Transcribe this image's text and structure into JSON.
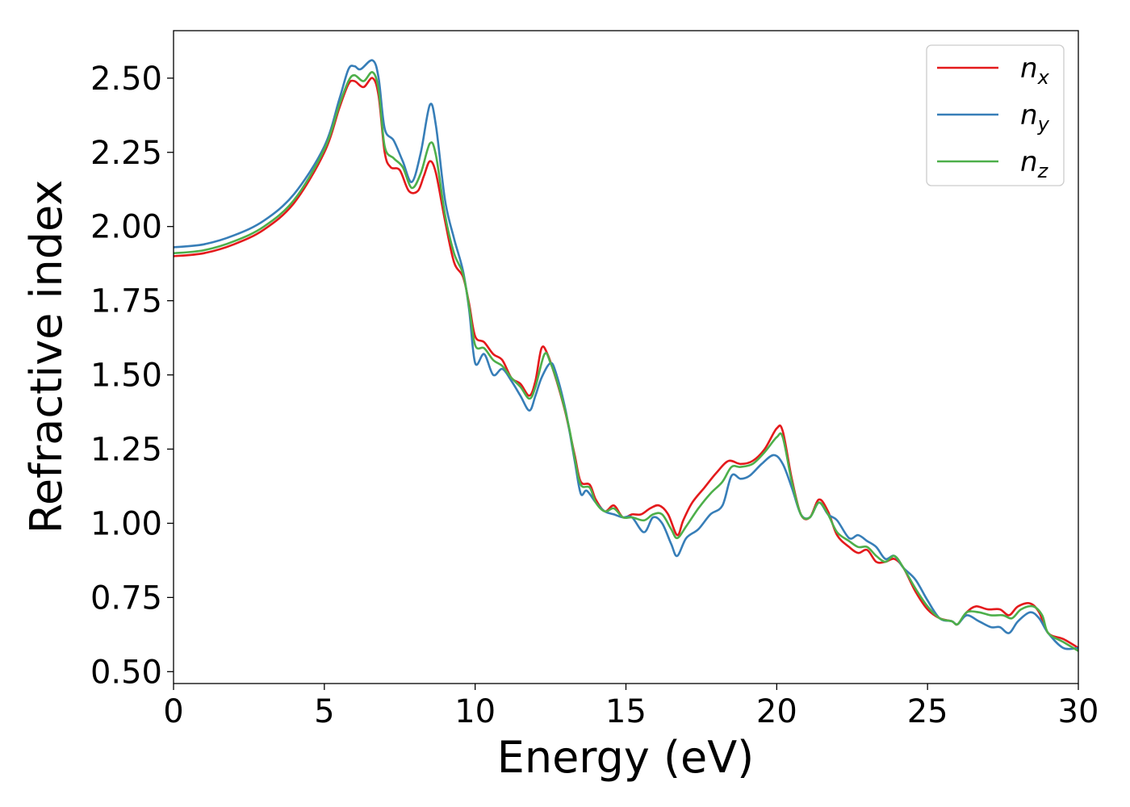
{
  "chart_data": {
    "type": "line",
    "title": "",
    "xlabel": "Energy (eV)",
    "ylabel": "Refractive index",
    "xlim": [
      0,
      30
    ],
    "ylim": [
      0.46,
      2.66
    ],
    "xticks": [
      0,
      5,
      10,
      15,
      20,
      25,
      30
    ],
    "xtick_labels": [
      "0",
      "5",
      "10",
      "15",
      "20",
      "25",
      "30"
    ],
    "yticks": [
      0.5,
      0.75,
      1.0,
      1.25,
      1.5,
      1.75,
      2.0,
      2.25,
      2.5
    ],
    "ytick_labels": [
      "0.50",
      "0.75",
      "1.00",
      "1.25",
      "1.50",
      "1.75",
      "2.00",
      "2.25",
      "2.50"
    ],
    "grid": false,
    "legend_position": "top-right",
    "series": [
      {
        "name": "n_x",
        "label_base": "n",
        "label_sub": "x",
        "color": "#e41a1c",
        "points": [
          [
            0,
            1.9
          ],
          [
            1,
            1.91
          ],
          [
            2,
            1.94
          ],
          [
            3,
            1.99
          ],
          [
            4,
            2.08
          ],
          [
            5,
            2.25
          ],
          [
            5.5,
            2.4
          ],
          [
            5.8,
            2.48
          ],
          [
            6.0,
            2.49
          ],
          [
            6.3,
            2.47
          ],
          [
            6.6,
            2.5
          ],
          [
            6.8,
            2.44
          ],
          [
            7.0,
            2.25
          ],
          [
            7.2,
            2.2
          ],
          [
            7.5,
            2.19
          ],
          [
            7.8,
            2.12
          ],
          [
            8.1,
            2.12
          ],
          [
            8.3,
            2.17
          ],
          [
            8.5,
            2.22
          ],
          [
            8.7,
            2.18
          ],
          [
            9.0,
            2.02
          ],
          [
            9.3,
            1.88
          ],
          [
            9.6,
            1.83
          ],
          [
            9.8,
            1.74
          ],
          [
            10.0,
            1.63
          ],
          [
            10.3,
            1.61
          ],
          [
            10.6,
            1.57
          ],
          [
            10.9,
            1.55
          ],
          [
            11.2,
            1.49
          ],
          [
            11.5,
            1.47
          ],
          [
            11.8,
            1.43
          ],
          [
            12.0,
            1.48
          ],
          [
            12.2,
            1.59
          ],
          [
            12.4,
            1.57
          ],
          [
            12.7,
            1.48
          ],
          [
            13.0,
            1.37
          ],
          [
            13.3,
            1.23
          ],
          [
            13.5,
            1.14
          ],
          [
            13.8,
            1.13
          ],
          [
            14.0,
            1.08
          ],
          [
            14.3,
            1.04
          ],
          [
            14.6,
            1.06
          ],
          [
            14.9,
            1.02
          ],
          [
            15.2,
            1.03
          ],
          [
            15.5,
            1.03
          ],
          [
            15.8,
            1.05
          ],
          [
            16.1,
            1.06
          ],
          [
            16.4,
            1.03
          ],
          [
            16.7,
            0.96
          ],
          [
            16.9,
            1.01
          ],
          [
            17.2,
            1.07
          ],
          [
            17.6,
            1.12
          ],
          [
            18.0,
            1.17
          ],
          [
            18.4,
            1.21
          ],
          [
            18.8,
            1.2
          ],
          [
            19.2,
            1.21
          ],
          [
            19.6,
            1.25
          ],
          [
            20.0,
            1.32
          ],
          [
            20.2,
            1.31
          ],
          [
            20.5,
            1.15
          ],
          [
            20.8,
            1.03
          ],
          [
            21.1,
            1.02
          ],
          [
            21.4,
            1.08
          ],
          [
            21.7,
            1.04
          ],
          [
            22.0,
            0.96
          ],
          [
            22.4,
            0.92
          ],
          [
            22.7,
            0.9
          ],
          [
            23.0,
            0.91
          ],
          [
            23.3,
            0.87
          ],
          [
            23.6,
            0.87
          ],
          [
            23.9,
            0.88
          ],
          [
            24.2,
            0.85
          ],
          [
            24.6,
            0.77
          ],
          [
            25.0,
            0.71
          ],
          [
            25.4,
            0.68
          ],
          [
            25.8,
            0.67
          ],
          [
            26.0,
            0.66
          ],
          [
            26.3,
            0.7
          ],
          [
            26.6,
            0.72
          ],
          [
            27.0,
            0.71
          ],
          [
            27.4,
            0.71
          ],
          [
            27.7,
            0.69
          ],
          [
            28.0,
            0.72
          ],
          [
            28.4,
            0.73
          ],
          [
            28.7,
            0.7
          ],
          [
            29.0,
            0.63
          ],
          [
            29.5,
            0.61
          ],
          [
            30.0,
            0.58
          ]
        ]
      },
      {
        "name": "n_y",
        "label_base": "n",
        "label_sub": "y",
        "color": "#377eb8",
        "points": [
          [
            0,
            1.93
          ],
          [
            1,
            1.94
          ],
          [
            2,
            1.97
          ],
          [
            3,
            2.02
          ],
          [
            4,
            2.11
          ],
          [
            5,
            2.27
          ],
          [
            5.5,
            2.43
          ],
          [
            5.8,
            2.53
          ],
          [
            6.0,
            2.54
          ],
          [
            6.2,
            2.53
          ],
          [
            6.6,
            2.56
          ],
          [
            6.8,
            2.5
          ],
          [
            7.0,
            2.33
          ],
          [
            7.3,
            2.29
          ],
          [
            7.6,
            2.22
          ],
          [
            7.9,
            2.15
          ],
          [
            8.2,
            2.25
          ],
          [
            8.5,
            2.41
          ],
          [
            8.7,
            2.34
          ],
          [
            9.0,
            2.09
          ],
          [
            9.3,
            1.96
          ],
          [
            9.6,
            1.85
          ],
          [
            9.8,
            1.72
          ],
          [
            10.0,
            1.54
          ],
          [
            10.3,
            1.57
          ],
          [
            10.6,
            1.5
          ],
          [
            10.9,
            1.52
          ],
          [
            11.2,
            1.48
          ],
          [
            11.5,
            1.43
          ],
          [
            11.8,
            1.38
          ],
          [
            12.0,
            1.43
          ],
          [
            12.2,
            1.49
          ],
          [
            12.5,
            1.54
          ],
          [
            12.7,
            1.5
          ],
          [
            13.0,
            1.38
          ],
          [
            13.3,
            1.21
          ],
          [
            13.5,
            1.1
          ],
          [
            13.7,
            1.11
          ],
          [
            14.0,
            1.07
          ],
          [
            14.3,
            1.04
          ],
          [
            14.6,
            1.03
          ],
          [
            14.9,
            1.02
          ],
          [
            15.2,
            1.02
          ],
          [
            15.6,
            0.97
          ],
          [
            15.9,
            1.02
          ],
          [
            16.2,
            1.0
          ],
          [
            16.5,
            0.93
          ],
          [
            16.7,
            0.89
          ],
          [
            17.0,
            0.95
          ],
          [
            17.4,
            0.98
          ],
          [
            17.8,
            1.03
          ],
          [
            18.2,
            1.06
          ],
          [
            18.5,
            1.16
          ],
          [
            18.8,
            1.15
          ],
          [
            19.1,
            1.16
          ],
          [
            19.5,
            1.2
          ],
          [
            19.9,
            1.23
          ],
          [
            20.2,
            1.2
          ],
          [
            20.5,
            1.12
          ],
          [
            20.8,
            1.03
          ],
          [
            21.1,
            1.02
          ],
          [
            21.4,
            1.07
          ],
          [
            21.7,
            1.03
          ],
          [
            22.0,
            1.01
          ],
          [
            22.4,
            0.95
          ],
          [
            22.7,
            0.96
          ],
          [
            23.0,
            0.94
          ],
          [
            23.3,
            0.92
          ],
          [
            23.6,
            0.88
          ],
          [
            23.9,
            0.89
          ],
          [
            24.2,
            0.85
          ],
          [
            24.6,
            0.81
          ],
          [
            25.0,
            0.74
          ],
          [
            25.4,
            0.68
          ],
          [
            25.8,
            0.67
          ],
          [
            26.0,
            0.66
          ],
          [
            26.3,
            0.69
          ],
          [
            26.7,
            0.67
          ],
          [
            27.1,
            0.65
          ],
          [
            27.4,
            0.65
          ],
          [
            27.7,
            0.63
          ],
          [
            28.0,
            0.67
          ],
          [
            28.4,
            0.7
          ],
          [
            28.7,
            0.68
          ],
          [
            29.0,
            0.63
          ],
          [
            29.5,
            0.58
          ],
          [
            30.0,
            0.58
          ]
        ]
      },
      {
        "name": "n_z",
        "label_base": "n",
        "label_sub": "z",
        "color": "#4daf4a",
        "points": [
          [
            0,
            1.91
          ],
          [
            1,
            1.92
          ],
          [
            2,
            1.95
          ],
          [
            3,
            2.0
          ],
          [
            4,
            2.09
          ],
          [
            5,
            2.26
          ],
          [
            5.5,
            2.41
          ],
          [
            5.8,
            2.49
          ],
          [
            6.0,
            2.51
          ],
          [
            6.3,
            2.49
          ],
          [
            6.6,
            2.52
          ],
          [
            6.8,
            2.46
          ],
          [
            7.0,
            2.27
          ],
          [
            7.3,
            2.23
          ],
          [
            7.6,
            2.2
          ],
          [
            7.9,
            2.13
          ],
          [
            8.2,
            2.18
          ],
          [
            8.5,
            2.28
          ],
          [
            8.7,
            2.24
          ],
          [
            9.0,
            2.04
          ],
          [
            9.3,
            1.91
          ],
          [
            9.6,
            1.84
          ],
          [
            9.8,
            1.73
          ],
          [
            10.0,
            1.6
          ],
          [
            10.3,
            1.59
          ],
          [
            10.6,
            1.55
          ],
          [
            10.9,
            1.53
          ],
          [
            11.2,
            1.49
          ],
          [
            11.5,
            1.46
          ],
          [
            11.8,
            1.42
          ],
          [
            12.0,
            1.46
          ],
          [
            12.3,
            1.57
          ],
          [
            12.5,
            1.54
          ],
          [
            12.8,
            1.45
          ],
          [
            13.1,
            1.33
          ],
          [
            13.3,
            1.22
          ],
          [
            13.5,
            1.13
          ],
          [
            13.8,
            1.12
          ],
          [
            14.0,
            1.07
          ],
          [
            14.3,
            1.04
          ],
          [
            14.6,
            1.05
          ],
          [
            14.9,
            1.02
          ],
          [
            15.2,
            1.02
          ],
          [
            15.6,
            1.01
          ],
          [
            15.9,
            1.03
          ],
          [
            16.2,
            1.03
          ],
          [
            16.5,
            0.98
          ],
          [
            16.7,
            0.95
          ],
          [
            17.0,
            0.99
          ],
          [
            17.4,
            1.05
          ],
          [
            17.8,
            1.1
          ],
          [
            18.2,
            1.14
          ],
          [
            18.5,
            1.19
          ],
          [
            18.8,
            1.19
          ],
          [
            19.2,
            1.2
          ],
          [
            19.6,
            1.24
          ],
          [
            20.0,
            1.29
          ],
          [
            20.2,
            1.29
          ],
          [
            20.5,
            1.14
          ],
          [
            20.8,
            1.03
          ],
          [
            21.1,
            1.02
          ],
          [
            21.4,
            1.07
          ],
          [
            21.7,
            1.03
          ],
          [
            22.0,
            0.97
          ],
          [
            22.4,
            0.94
          ],
          [
            22.7,
            0.92
          ],
          [
            23.0,
            0.92
          ],
          [
            23.3,
            0.89
          ],
          [
            23.6,
            0.87
          ],
          [
            23.9,
            0.89
          ],
          [
            24.2,
            0.85
          ],
          [
            24.6,
            0.78
          ],
          [
            25.0,
            0.72
          ],
          [
            25.4,
            0.68
          ],
          [
            25.8,
            0.67
          ],
          [
            26.0,
            0.66
          ],
          [
            26.3,
            0.7
          ],
          [
            26.7,
            0.7
          ],
          [
            27.1,
            0.69
          ],
          [
            27.5,
            0.69
          ],
          [
            27.8,
            0.68
          ],
          [
            28.1,
            0.71
          ],
          [
            28.5,
            0.72
          ],
          [
            28.8,
            0.69
          ],
          [
            29.0,
            0.63
          ],
          [
            29.5,
            0.6
          ],
          [
            30.0,
            0.57
          ]
        ]
      }
    ]
  }
}
